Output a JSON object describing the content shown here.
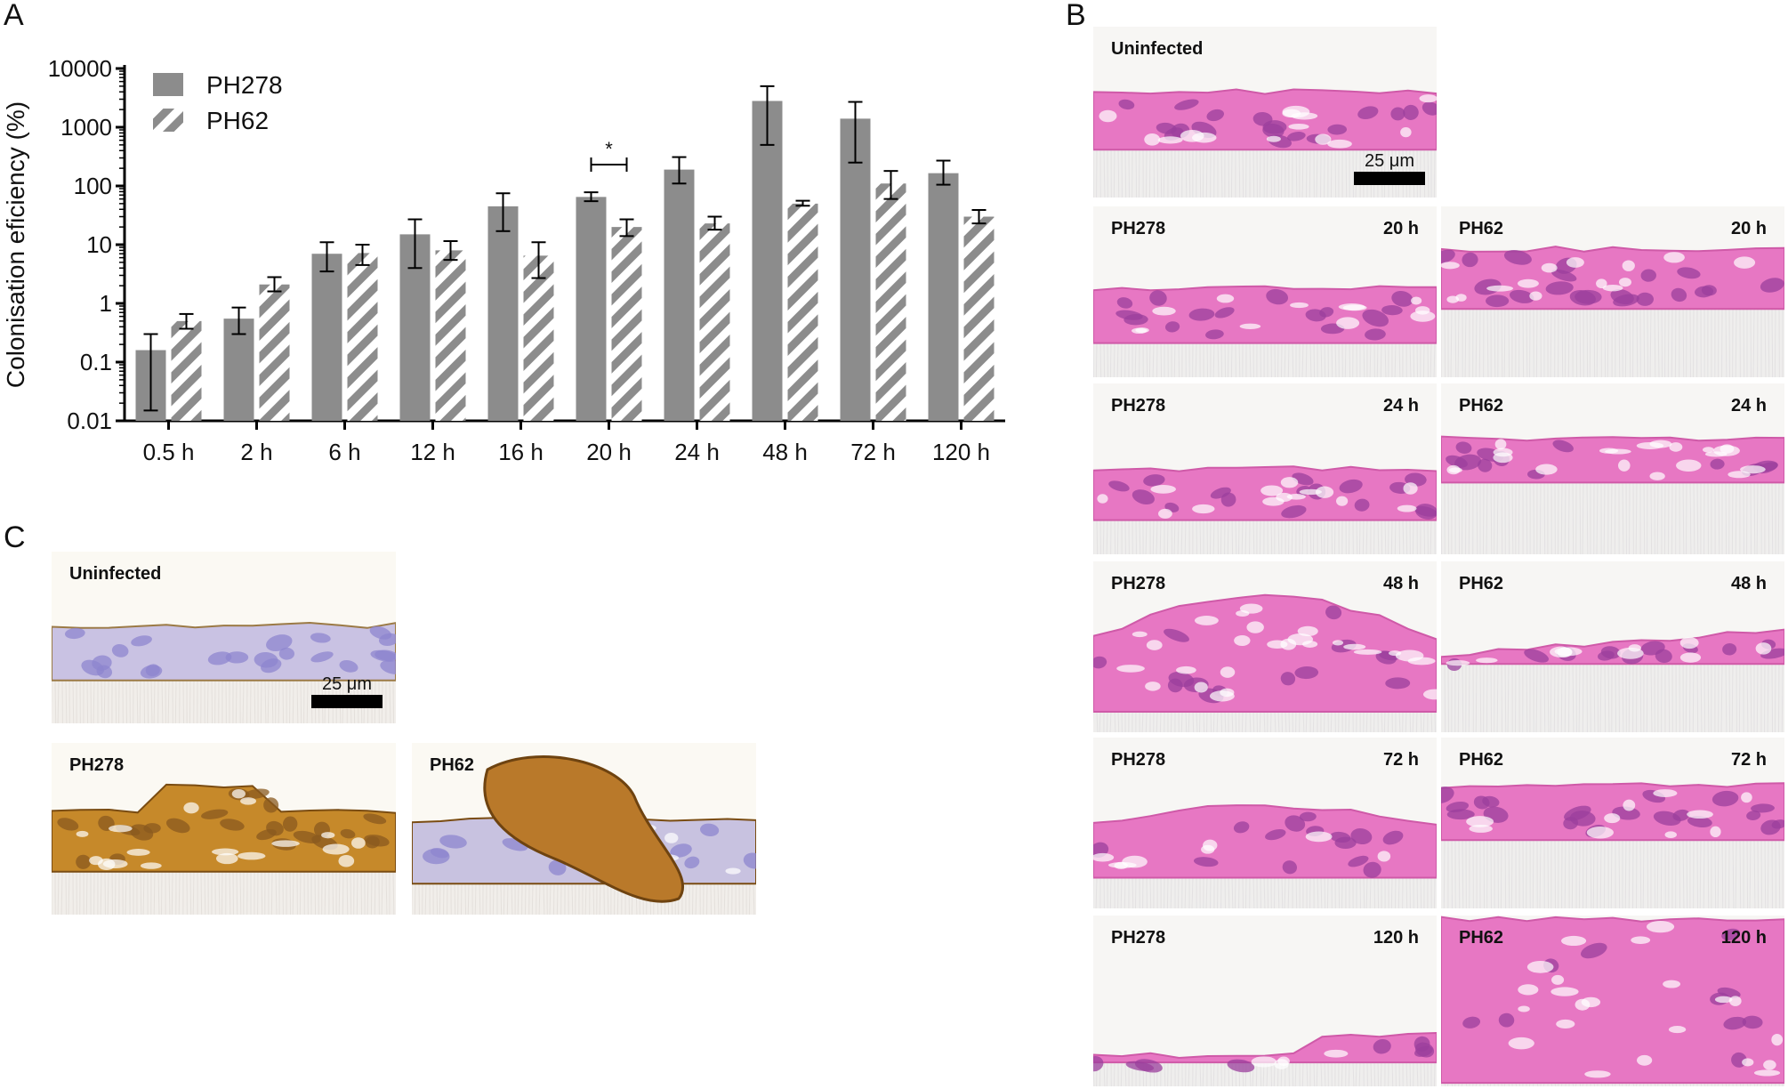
{
  "panels": {
    "a": "A",
    "b": "B",
    "c": "C"
  },
  "chart_data": {
    "type": "bar",
    "ylabel": "Colonisation eficiency (%)",
    "yscale": "log",
    "ylim": [
      0.01,
      10000
    ],
    "yticks": [
      "0.01",
      "0.1",
      "1",
      "10",
      "100",
      "1000",
      "10000"
    ],
    "categories": [
      "0.5 h",
      "2 h",
      "6 h",
      "12 h",
      "16 h",
      "20 h",
      "24 h",
      "48 h",
      "72 h",
      "120 h"
    ],
    "series": [
      {
        "name": "PH278",
        "style": "solid",
        "color": "#8c8c8c",
        "values": [
          0.16,
          0.55,
          7,
          15,
          45,
          65,
          190,
          2800,
          1400,
          165
        ],
        "err_low": [
          0.015,
          0.3,
          3.5,
          4,
          17,
          55,
          110,
          500,
          250,
          105
        ],
        "err_high": [
          0.3,
          0.85,
          11,
          27,
          75,
          78,
          310,
          5000,
          2700,
          270
        ]
      },
      {
        "name": "PH62",
        "style": "hatched",
        "color": "#8c8c8c",
        "values": [
          0.5,
          2.1,
          7.2,
          8,
          6.5,
          20,
          23,
          50,
          110,
          30
        ],
        "err_low": [
          0.37,
          1.6,
          4.5,
          5.5,
          2.7,
          14,
          18,
          46,
          60,
          23
        ],
        "err_high": [
          0.66,
          2.8,
          10,
          11.5,
          11,
          27,
          30,
          56,
          180,
          39
        ]
      }
    ],
    "annotation": {
      "text": "*",
      "category": "20 h"
    },
    "legend_position": "top-left"
  },
  "histology_b": {
    "scale_label": "25 μm",
    "tiles": [
      {
        "left": "Uninfected",
        "right": ""
      },
      {
        "left": "PH278",
        "right": "20 h"
      },
      {
        "left": "PH62",
        "right": "20 h"
      },
      {
        "left": "PH278",
        "right": "24 h"
      },
      {
        "left": "PH62",
        "right": "24 h"
      },
      {
        "left": "PH278",
        "right": "48 h"
      },
      {
        "left": "PH62",
        "right": "48 h"
      },
      {
        "left": "PH278",
        "right": "72 h"
      },
      {
        "left": "PH62",
        "right": "72 h"
      },
      {
        "left": "PH278",
        "right": "120 h"
      },
      {
        "left": "PH62",
        "right": "120 h"
      }
    ]
  },
  "histology_c": {
    "scale_label": "25 μm",
    "tiles": [
      {
        "left": "Uninfected"
      },
      {
        "left": "PH278"
      },
      {
        "left": "PH62"
      }
    ]
  }
}
